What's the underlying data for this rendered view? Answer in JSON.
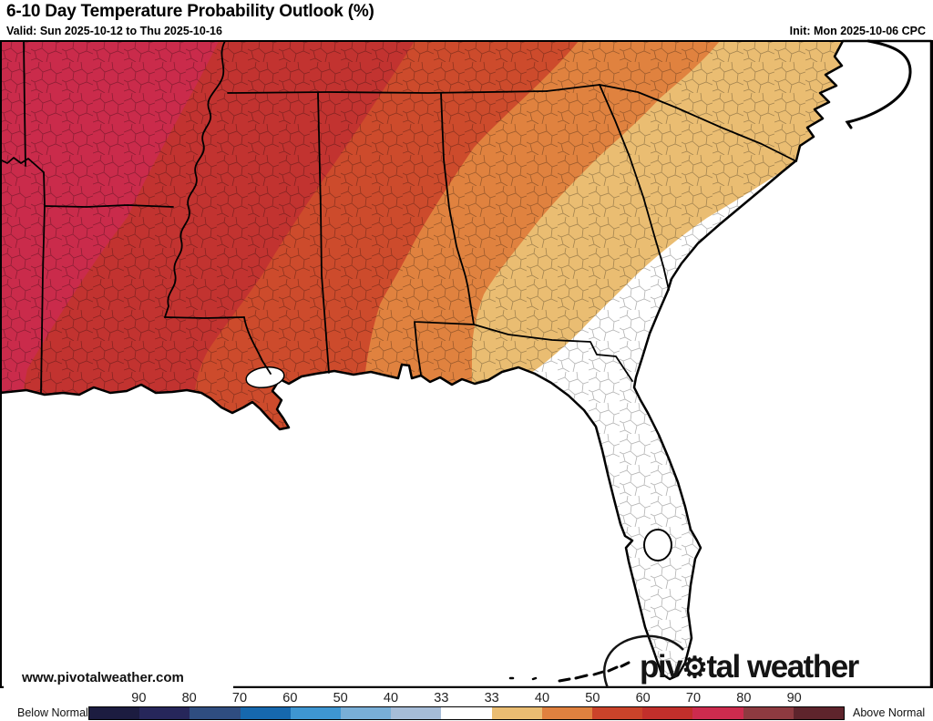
{
  "header": {
    "title": "6-10 Day Temperature Probability Outlook (%)",
    "valid_label": "Valid: Sun 2025-10-12 to Thu 2025-10-16",
    "init_label": "Init: Mon 2025-10-06 CPC"
  },
  "map": {
    "watermark": "www.pivotalweather.com",
    "logo": {
      "part1": "piv",
      "gear_icon": "⚙",
      "part2": "tal weather"
    },
    "band_colors": {
      "above_70_80": "#ca2b4b",
      "above_60_70": "#c23330",
      "above_50_60": "#cd4b2c",
      "above_40_50": "#e0823f",
      "above_33_40": "#eabd72",
      "near_normal": "#ffffff"
    },
    "features": {
      "ocean": "#ffffff",
      "lake": "#ffffff",
      "border_color": "#000000"
    }
  },
  "colorbar": {
    "below_label": "Below Normal",
    "above_label": "Above Normal",
    "tick_labels": [
      "90",
      "80",
      "70",
      "60",
      "50",
      "40",
      "33",
      "33",
      "40",
      "50",
      "60",
      "70",
      "80",
      "90"
    ],
    "segment_colors": [
      "#1c1c40",
      "#26265a",
      "#2f4d80",
      "#1668ae",
      "#3e96d2",
      "#79afd7",
      "#a6bdd8",
      "#ffffff",
      "#eabd72",
      "#e0813f",
      "#cb432a",
      "#c22f2b",
      "#cd2b4e",
      "#8e3a40",
      "#5e242c"
    ]
  }
}
